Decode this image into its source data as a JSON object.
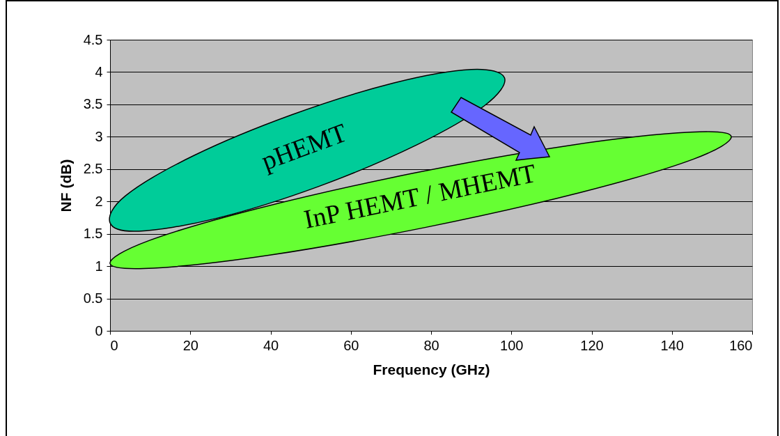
{
  "chart_data": {
    "type": "area",
    "xlabel": "Frequency (GHz)",
    "ylabel": "NF (dB)",
    "xlim": [
      0,
      160
    ],
    "xticks": [
      0,
      20,
      40,
      60,
      80,
      100,
      120,
      140,
      160
    ],
    "ylim": [
      0,
      4.5
    ],
    "yticks": [
      0,
      0.5,
      1,
      1.5,
      2,
      2.5,
      3,
      3.5,
      4,
      4.5
    ],
    "grid": "y",
    "series": [
      {
        "name": "InP HEMT / MHEMT",
        "color": "#66ff33",
        "x": [
          154.8,
          145.2,
          117.3,
          78.7,
          39.8,
          10.9,
          0,
          9.5,
          37.4,
          75.9,
          114.9,
          144.6
        ],
        "values": [
          3.0,
          2.65,
          2.14,
          1.6,
          1.17,
          0.97,
          1.04,
          1.39,
          1.9,
          2.44,
          2.87,
          3.07
        ]
      },
      {
        "name": "pHEMT",
        "color": "#00cc99",
        "x": [
          98.3,
          93.3,
          76.3,
          51.9,
          26.6,
          7.2,
          0,
          3.9,
          20.9,
          45.3,
          70.6,
          90.0
        ],
        "values": [
          3.91,
          3.48,
          2.87,
          2.23,
          1.74,
          1.54,
          1.67,
          2.09,
          2.71,
          3.34,
          3.83,
          4.04
        ]
      }
    ]
  }
}
